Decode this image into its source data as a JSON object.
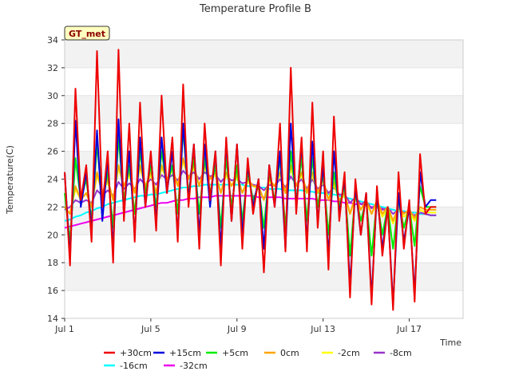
{
  "chart_data": {
    "type": "line",
    "title": "Temperature Profile B",
    "xlabel": "Time",
    "ylabel": "Temperature(C)",
    "badge": "GT_met",
    "ylim": [
      14,
      34
    ],
    "yticks": [
      14,
      16,
      18,
      20,
      22,
      24,
      26,
      28,
      30,
      32,
      34
    ],
    "xlim": [
      "Jul 1",
      "Jul 19"
    ],
    "xtick_labels": [
      "Jul 1",
      "Jul 5",
      "Jul 9",
      "Jul 13",
      "Jul 17"
    ],
    "grid": "horizontal bands",
    "legend_position": "bottom",
    "x_days": [
      1.0,
      1.25,
      1.5,
      1.75,
      2.0,
      2.25,
      2.5,
      2.75,
      3.0,
      3.25,
      3.5,
      3.75,
      4.0,
      4.25,
      4.5,
      4.75,
      5.0,
      5.25,
      5.5,
      5.75,
      6.0,
      6.25,
      6.5,
      6.75,
      7.0,
      7.25,
      7.5,
      7.75,
      8.0,
      8.25,
      8.5,
      8.75,
      9.0,
      9.25,
      9.5,
      9.75,
      10.0,
      10.25,
      10.5,
      10.75,
      11.0,
      11.25,
      11.5,
      11.75,
      12.0,
      12.25,
      12.5,
      12.75,
      13.0,
      13.25,
      13.5,
      13.75,
      14.0,
      14.25,
      14.5,
      14.75,
      15.0,
      15.25,
      15.5,
      15.75,
      16.0,
      16.25,
      16.5,
      16.75,
      17.0,
      17.25,
      17.5,
      17.75,
      18.0,
      18.25
    ],
    "series": [
      {
        "name": "+30cm",
        "color": "#ee0000",
        "values": [
          24.5,
          17.8,
          30.5,
          22.5,
          25.0,
          19.5,
          33.2,
          22.0,
          26.0,
          18.0,
          33.3,
          21.0,
          28.0,
          19.5,
          29.5,
          22.0,
          26.0,
          20.3,
          30.0,
          23.0,
          27.0,
          19.5,
          30.8,
          22.0,
          26.5,
          19.0,
          28.0,
          22.5,
          26.0,
          17.8,
          27.0,
          21.0,
          26.5,
          19.0,
          25.5,
          21.5,
          24.0,
          17.3,
          25.0,
          22.0,
          28.0,
          18.8,
          32.0,
          21.5,
          27.0,
          18.8,
          29.5,
          20.5,
          26.0,
          17.5,
          28.5,
          21.0,
          24.5,
          15.5,
          24.0,
          20.0,
          23.0,
          15.0,
          23.5,
          18.5,
          22.0,
          14.6,
          24.5,
          19.0,
          22.5,
          15.2,
          25.8,
          21.5,
          22.0,
          22.0
        ]
      },
      {
        "name": "+15cm",
        "color": "#0000dd",
        "values": [
          24.5,
          18.3,
          28.2,
          22.0,
          24.5,
          20.5,
          27.5,
          21.0,
          25.5,
          19.0,
          28.3,
          21.5,
          26.0,
          20.0,
          27.0,
          22.0,
          25.8,
          21.0,
          27.0,
          23.0,
          26.0,
          20.0,
          28.0,
          22.5,
          26.5,
          20.0,
          26.5,
          22.0,
          26.0,
          19.0,
          26.7,
          21.0,
          26.5,
          20.0,
          25.0,
          22.0,
          24.0,
          19.0,
          25.0,
          22.0,
          26.0,
          19.0,
          28.0,
          22.0,
          26.5,
          19.5,
          26.7,
          21.0,
          25.0,
          18.5,
          26.0,
          21.5,
          24.0,
          16.3,
          23.5,
          20.0,
          23.0,
          15.5,
          23.0,
          19.0,
          22.0,
          15.0,
          23.0,
          19.5,
          22.0,
          15.8,
          24.5,
          22.0,
          22.5,
          22.5
        ]
      },
      {
        "name": "+5cm",
        "color": "#00ee00",
        "values": [
          23.0,
          19.5,
          25.5,
          22.5,
          24.0,
          21.0,
          26.5,
          22.5,
          24.5,
          20.5,
          27.0,
          22.5,
          25.0,
          21.5,
          26.0,
          23.0,
          25.0,
          22.0,
          26.0,
          23.5,
          25.0,
          21.5,
          27.5,
          23.0,
          25.5,
          21.5,
          25.5,
          23.0,
          25.0,
          20.5,
          25.5,
          22.0,
          25.0,
          21.0,
          24.5,
          22.5,
          23.5,
          20.5,
          24.5,
          22.5,
          25.5,
          20.5,
          26.0,
          22.5,
          25.5,
          21.0,
          25.5,
          22.0,
          24.5,
          20.0,
          24.5,
          22.0,
          23.5,
          18.5,
          23.0,
          21.0,
          22.5,
          18.5,
          22.5,
          20.0,
          22.0,
          19.0,
          22.5,
          20.5,
          22.0,
          19.2,
          23.5,
          22.0,
          22.0,
          22.0
        ]
      },
      {
        "name": "0cm",
        "color": "#ffa500",
        "values": [
          22.0,
          21.5,
          23.5,
          22.5,
          23.0,
          22.0,
          24.5,
          23.0,
          24.0,
          22.5,
          25.0,
          23.5,
          24.5,
          23.0,
          25.0,
          23.5,
          24.5,
          23.0,
          25.0,
          24.0,
          24.8,
          23.5,
          25.5,
          24.0,
          25.0,
          23.5,
          25.0,
          24.0,
          24.5,
          23.0,
          24.5,
          23.5,
          24.3,
          23.0,
          24.0,
          23.5,
          23.5,
          22.5,
          24.0,
          23.5,
          24.5,
          23.0,
          25.0,
          23.5,
          24.5,
          23.0,
          24.5,
          23.0,
          24.0,
          22.5,
          23.8,
          22.5,
          23.0,
          21.5,
          22.8,
          21.8,
          22.5,
          21.5,
          22.5,
          21.5,
          22.0,
          21.0,
          22.0,
          21.5,
          21.8,
          21.2,
          22.0,
          21.8,
          21.8,
          21.8
        ]
      },
      {
        "name": "-2cm",
        "color": "#ffff00",
        "values": [
          22.0,
          21.5,
          23.3,
          22.5,
          23.0,
          22.0,
          24.3,
          23.0,
          23.8,
          22.5,
          24.8,
          23.5,
          24.3,
          23.0,
          24.8,
          23.5,
          24.3,
          23.0,
          24.8,
          24.0,
          24.6,
          23.5,
          25.3,
          24.0,
          24.8,
          23.5,
          24.8,
          24.0,
          24.3,
          23.0,
          24.3,
          23.5,
          24.1,
          23.0,
          23.8,
          23.5,
          23.3,
          22.5,
          23.8,
          23.5,
          24.3,
          23.0,
          24.8,
          23.5,
          24.3,
          23.0,
          24.3,
          23.0,
          23.8,
          22.5,
          23.6,
          22.5,
          22.8,
          21.5,
          22.6,
          21.8,
          22.3,
          21.5,
          22.3,
          21.3,
          21.8,
          20.8,
          21.8,
          21.3,
          21.6,
          21.0,
          21.8,
          21.6,
          21.6,
          21.6
        ]
      },
      {
        "name": "-8cm",
        "color": "#9932cc",
        "values": [
          21.8,
          22.0,
          22.5,
          22.3,
          22.5,
          22.3,
          23.2,
          22.8,
          23.2,
          22.8,
          23.8,
          23.3,
          23.7,
          23.3,
          24.0,
          23.6,
          24.0,
          23.6,
          24.3,
          24.0,
          24.3,
          23.9,
          24.6,
          24.2,
          24.5,
          24.0,
          24.5,
          24.2,
          24.3,
          23.8,
          24.2,
          23.9,
          24.0,
          23.7,
          23.8,
          23.6,
          23.5,
          23.2,
          23.6,
          23.5,
          24.0,
          23.4,
          24.2,
          23.6,
          24.0,
          23.3,
          24.0,
          23.3,
          23.6,
          23.0,
          23.4,
          22.9,
          22.9,
          22.3,
          22.7,
          22.2,
          22.4,
          21.9,
          22.2,
          21.8,
          21.9,
          21.5,
          21.8,
          21.6,
          21.6,
          21.4,
          21.6,
          21.5,
          21.4,
          21.4
        ]
      },
      {
        "name": "-16cm",
        "color": "#00ffff",
        "values": [
          21.0,
          21.1,
          21.3,
          21.4,
          21.6,
          21.7,
          21.9,
          22.0,
          22.2,
          22.3,
          22.4,
          22.5,
          22.6,
          22.7,
          22.8,
          22.8,
          22.9,
          22.9,
          23.0,
          23.1,
          23.2,
          23.3,
          23.4,
          23.4,
          23.5,
          23.5,
          23.6,
          23.6,
          23.6,
          23.6,
          23.6,
          23.6,
          23.6,
          23.6,
          23.5,
          23.5,
          23.4,
          23.4,
          23.3,
          23.3,
          23.3,
          23.2,
          23.2,
          23.2,
          23.2,
          23.1,
          23.1,
          23.0,
          23.0,
          22.9,
          22.9,
          22.8,
          22.7,
          22.6,
          22.5,
          22.4,
          22.3,
          22.2,
          22.1,
          22.0,
          21.9,
          21.8,
          21.7,
          21.7,
          21.6,
          21.6,
          21.5,
          21.5,
          21.4,
          21.4
        ]
      },
      {
        "name": "-32cm",
        "color": "#ee00ee",
        "values": [
          20.5,
          20.6,
          20.7,
          20.8,
          20.9,
          21.0,
          21.1,
          21.2,
          21.3,
          21.4,
          21.5,
          21.6,
          21.7,
          21.8,
          21.9,
          22.0,
          22.1,
          22.2,
          22.3,
          22.3,
          22.4,
          22.5,
          22.5,
          22.6,
          22.6,
          22.7,
          22.7,
          22.7,
          22.8,
          22.8,
          22.8,
          22.8,
          22.8,
          22.8,
          22.8,
          22.8,
          22.7,
          22.7,
          22.7,
          22.7,
          22.7,
          22.6,
          22.6,
          22.6,
          22.6,
          22.6,
          22.6,
          22.5,
          22.5,
          22.5,
          22.4,
          22.4,
          22.3,
          22.3,
          22.2,
          22.2,
          22.1,
          22.0,
          22.0,
          21.9,
          21.8,
          21.8,
          21.7,
          21.7,
          21.6,
          21.6,
          21.5,
          21.5,
          21.4,
          21.4
        ]
      }
    ]
  }
}
